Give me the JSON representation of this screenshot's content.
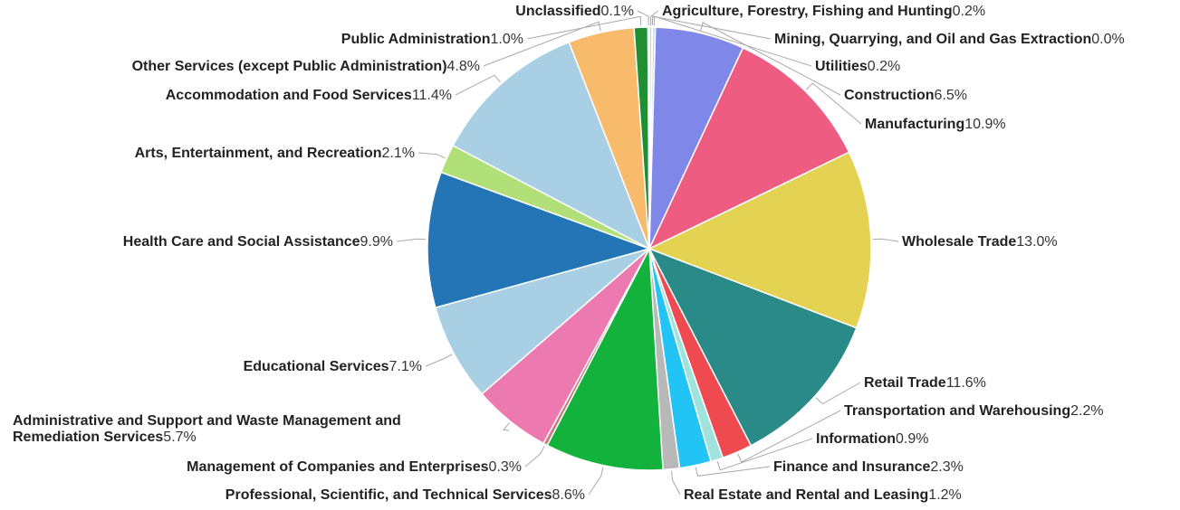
{
  "chart_data": {
    "type": "pie",
    "title": "",
    "start_angle_deg": 0,
    "direction": "clockwise",
    "slices": [
      {
        "label": "Agriculture, Forestry, Fishing and Hunting",
        "value_text": "0.2%",
        "value": 0.2,
        "color": "#cfcfcf"
      },
      {
        "label": "Mining, Quarrying, and Oil and Gas Extraction",
        "value_text": "0.0%",
        "value": 0.04,
        "color": "#bbbbbb"
      },
      {
        "label": "Utilities",
        "value_text": "0.2%",
        "value": 0.2,
        "color": "#b9d9ea"
      },
      {
        "label": "Construction",
        "value_text": "6.5%",
        "value": 6.5,
        "color": "#7f87e8"
      },
      {
        "label": "Manufacturing",
        "value_text": "10.9%",
        "value": 10.9,
        "color": "#ef5c82"
      },
      {
        "label": "Wholesale Trade",
        "value_text": "13.0%",
        "value": 13.0,
        "color": "#e4d253"
      },
      {
        "label": "Retail Trade",
        "value_text": "11.6%",
        "value": 11.6,
        "color": "#2a8a87"
      },
      {
        "label": "Transportation and Warehousing",
        "value_text": "2.2%",
        "value": 2.2,
        "color": "#ee4a4f"
      },
      {
        "label": "Information",
        "value_text": "0.9%",
        "value": 0.9,
        "color": "#9fe3dc"
      },
      {
        "label": "Finance and Insurance",
        "value_text": "2.3%",
        "value": 2.3,
        "color": "#21c4f4"
      },
      {
        "label": "Real Estate and Rental and Leasing",
        "value_text": "1.2%",
        "value": 1.2,
        "color": "#b8b8b8"
      },
      {
        "label": "Professional, Scientific, and Technical Services",
        "value_text": "8.6%",
        "value": 8.6,
        "color": "#12b23c"
      },
      {
        "label": "Management of Companies and Enterprises",
        "value_text": "0.3%",
        "value": 0.3,
        "color": "#c77b7b"
      },
      {
        "label": "Administrative and Support and Waste Management and Remediation Services",
        "value_text": "5.7%",
        "value": 5.7,
        "color": "#ec7ab0"
      },
      {
        "label": "Educational Services",
        "value_text": "7.1%",
        "value": 7.1,
        "color": "#a8cfe4"
      },
      {
        "label": "Health Care and Social Assistance",
        "value_text": "9.9%",
        "value": 9.9,
        "color": "#2375b6"
      },
      {
        "label": "Arts, Entertainment, and Recreation",
        "value_text": "2.1%",
        "value": 2.1,
        "color": "#b1df78"
      },
      {
        "label": "Accommodation and Food Services",
        "value_text": "11.4%",
        "value": 11.4,
        "color": "#a8cfe4"
      },
      {
        "label": "Other Services (except Public Administration)",
        "value_text": "4.8%",
        "value": 4.8,
        "color": "#f8bb6c"
      },
      {
        "label": "Public Administration",
        "value_text": "1.0%",
        "value": 1.0,
        "color": "#1f8f31"
      },
      {
        "label": "Unclassified",
        "value_text": "0.1%",
        "value": 0.1,
        "color": "#dddddd"
      }
    ]
  }
}
